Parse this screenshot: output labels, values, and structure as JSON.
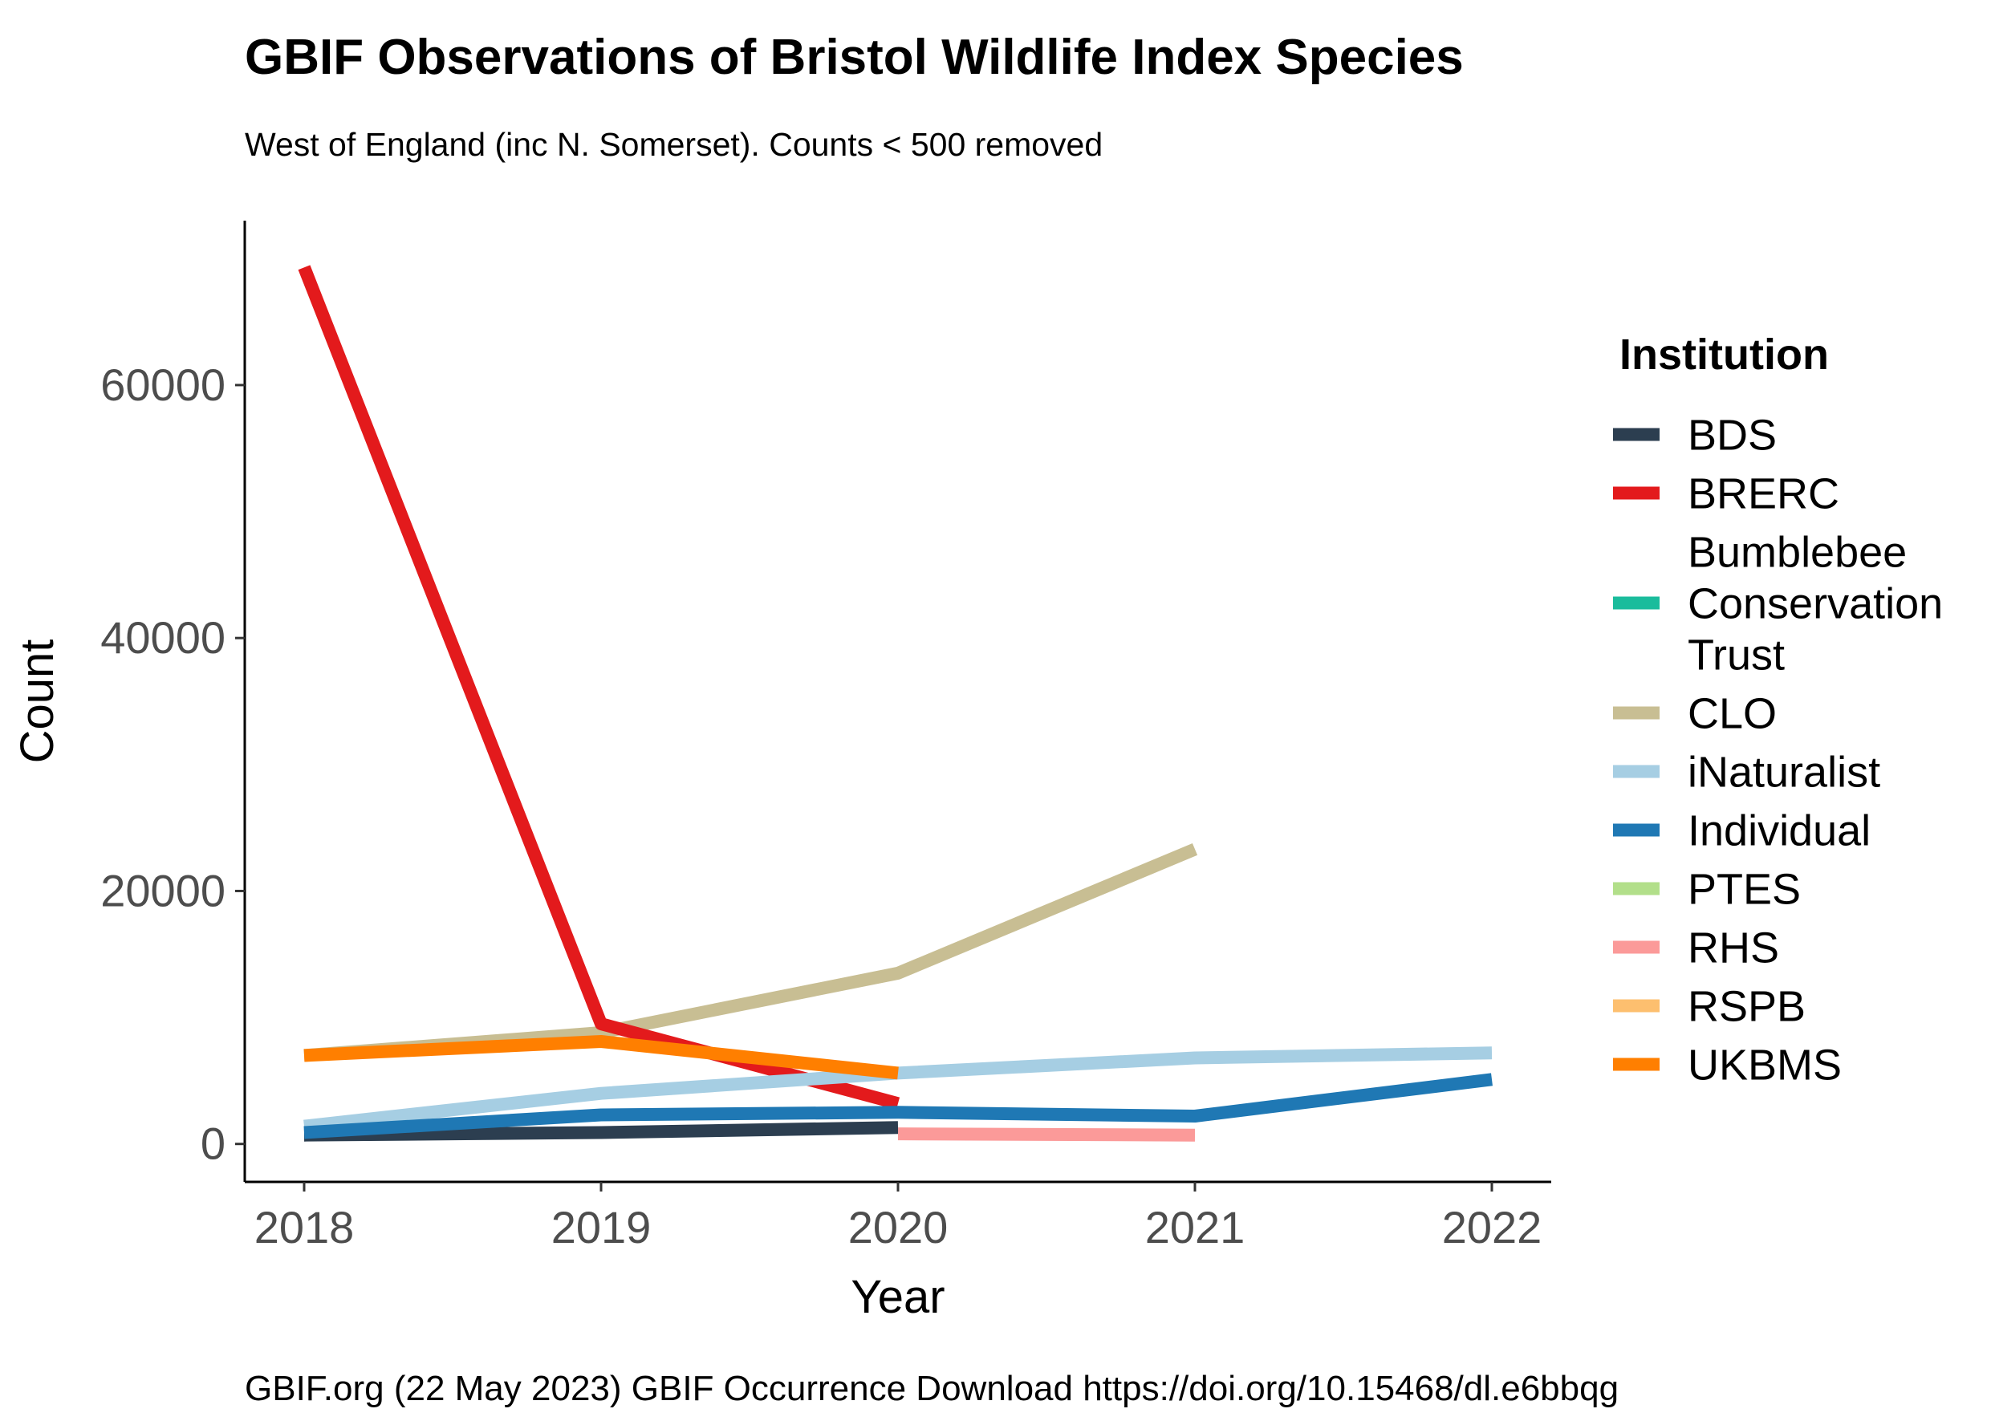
{
  "chart_data": {
    "type": "line",
    "title": "GBIF Observations of Bristol Wildlife Index Species",
    "subtitle": "West of England (inc N. Somerset). Counts < 500 removed",
    "caption": "GBIF.org (22 May 2023) GBIF Occurrence Download https://doi.org/10.15468/dl.e6bbqg",
    "xlabel": "Year",
    "ylabel": "Count",
    "x": [
      2018,
      2019,
      2020,
      2021,
      2022
    ],
    "x_tick_labels": [
      "2018",
      "2019",
      "2020",
      "2021",
      "2022"
    ],
    "y_ticks": [
      0,
      20000,
      40000,
      60000
    ],
    "y_tick_labels": [
      "0",
      "20000",
      "40000",
      "60000"
    ],
    "xlim": [
      2017.8,
      2022.2
    ],
    "ylim": [
      -3000,
      73000
    ],
    "grid": false,
    "legend": {
      "title": "Institution",
      "placement": "right",
      "entries": [
        {
          "lines": [
            "BDS"
          ],
          "color": "#2c3e50"
        },
        {
          "lines": [
            "BRERC"
          ],
          "color": "#e31a1c"
        },
        {
          "lines": [
            "Bumblebee",
            "Conservation",
            "Trust"
          ],
          "color": "#1abc9c"
        },
        {
          "lines": [
            "CLO"
          ],
          "color": "#c8be93"
        },
        {
          "lines": [
            "iNaturalist"
          ],
          "color": "#a6cee3"
        },
        {
          "lines": [
            "Individual"
          ],
          "color": "#1f78b4"
        },
        {
          "lines": [
            "PTES"
          ],
          "color": "#b2df8a"
        },
        {
          "lines": [
            "RHS"
          ],
          "color": "#fb9a99"
        },
        {
          "lines": [
            "RSPB"
          ],
          "color": "#fdbf6f"
        },
        {
          "lines": [
            "UKBMS"
          ],
          "color": "#ff7f00"
        }
      ]
    },
    "series": [
      {
        "name": "CLO",
        "color": "#c8be93",
        "points": [
          [
            2018,
            7000
          ],
          [
            2019,
            8800
          ],
          [
            2020,
            13500
          ],
          [
            2021,
            23300
          ]
        ]
      },
      {
        "name": "BRERC",
        "color": "#e31a1c",
        "points": [
          [
            2018,
            69300
          ],
          [
            2019,
            9500
          ],
          [
            2020,
            3200
          ]
        ]
      },
      {
        "name": "iNaturalist",
        "color": "#a6cee3",
        "points": [
          [
            2018,
            1400
          ],
          [
            2019,
            4000
          ],
          [
            2020,
            5600
          ],
          [
            2021,
            6800
          ],
          [
            2022,
            7200
          ]
        ]
      },
      {
        "name": "BDS",
        "color": "#2c3e50",
        "points": [
          [
            2018,
            700
          ],
          [
            2019,
            900
          ],
          [
            2020,
            1300
          ]
        ]
      },
      {
        "name": "RHS",
        "color": "#fb9a99",
        "points": [
          [
            2020,
            800
          ],
          [
            2021,
            700
          ]
        ]
      },
      {
        "name": "Individual",
        "color": "#1f78b4",
        "points": [
          [
            2018,
            900
          ],
          [
            2019,
            2300
          ],
          [
            2020,
            2500
          ],
          [
            2021,
            2200
          ],
          [
            2022,
            5100
          ]
        ]
      },
      {
        "name": "UKBMS",
        "color": "#ff7f00",
        "points": [
          [
            2018,
            7000
          ],
          [
            2019,
            8100
          ],
          [
            2020,
            5600
          ]
        ]
      }
    ]
  }
}
